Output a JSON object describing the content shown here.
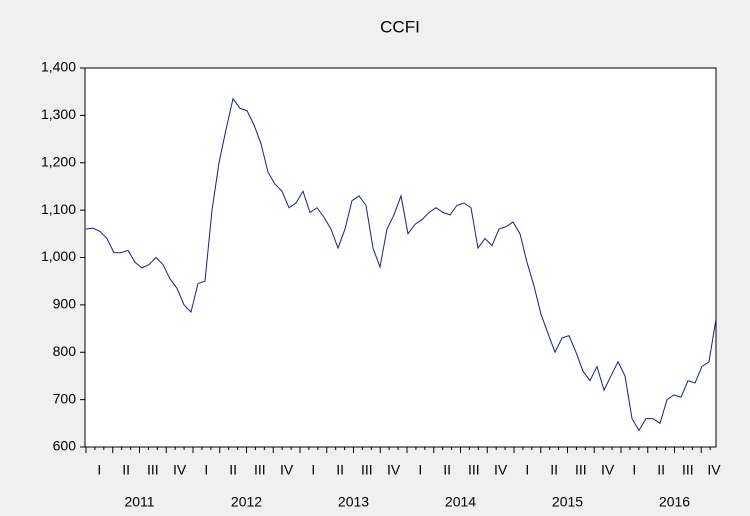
{
  "chart_data": {
    "type": "line",
    "title": "CCFI",
    "x_axis": [
      {
        "year": "2011",
        "quarters": [
          "I",
          "II",
          "III",
          "IV"
        ]
      },
      {
        "year": "2012",
        "quarters": [
          "I",
          "II",
          "III",
          "IV"
        ]
      },
      {
        "year": "2013",
        "quarters": [
          "I",
          "II",
          "III",
          "IV"
        ]
      },
      {
        "year": "2014",
        "quarters": [
          "I",
          "II",
          "III",
          "IV"
        ]
      },
      {
        "year": "2015",
        "quarters": [
          "I",
          "II",
          "III",
          "IV"
        ]
      },
      {
        "year": "2016",
        "quarters": [
          "I",
          "II",
          "III",
          "IV"
        ]
      }
    ],
    "series": [
      {
        "name": "CCFI",
        "color": "#1c1c8a",
        "values": [
          1060,
          1062,
          1055,
          1040,
          1010,
          1010,
          1015,
          990,
          978,
          985,
          1000,
          985,
          955,
          935,
          900,
          885,
          945,
          950,
          1100,
          1200,
          1270,
          1335,
          1315,
          1310,
          1280,
          1240,
          1180,
          1155,
          1140,
          1105,
          1115,
          1140,
          1095,
          1105,
          1085,
          1060,
          1020,
          1060,
          1120,
          1130,
          1110,
          1020,
          980,
          1060,
          1090,
          1130,
          1050,
          1070,
          1080,
          1095,
          1105,
          1095,
          1090,
          1110,
          1115,
          1105,
          1020,
          1040,
          1025,
          1060,
          1065,
          1075,
          1050,
          990,
          940,
          880,
          840,
          800,
          830,
          835,
          800,
          760,
          740,
          770,
          720,
          750,
          780,
          750,
          660,
          635,
          660,
          660,
          650,
          700,
          710,
          705,
          740,
          735,
          770,
          780,
          870
        ]
      }
    ],
    "ylim": [
      600,
      1400
    ],
    "yticks": [
      600,
      700,
      800,
      900,
      {
        "value": 1000,
        "label": "1,000"
      },
      {
        "value": 1100,
        "label": "1,100"
      },
      {
        "value": 1200,
        "label": "1,200"
      },
      {
        "value": 1300,
        "label": "1,300"
      },
      {
        "value": 1400,
        "label": "1,400"
      }
    ]
  }
}
